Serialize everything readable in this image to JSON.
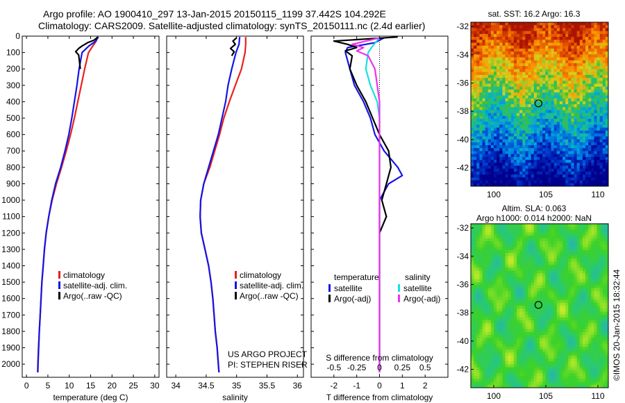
{
  "header": {
    "line1": "Argo profile: AO 1900410_297 13-Jan-2015 20150115_1199 37.442S 104.292E",
    "line2": "Climatology: CARS2009. Satellite-adjusted climatology: synTS_20150111.nc (2.4d earlier)"
  },
  "colors": {
    "climatology": "#e8201a",
    "satellite": "#1414e6",
    "argo": "#000000",
    "sal_satellite": "#17e0e0",
    "sal_argo": "#ee30ee"
  },
  "chart_data": [
    {
      "type": "line",
      "id": "temperature",
      "xlabel": "temperature (deg C)",
      "xlim": [
        -1,
        31
      ],
      "ylim": [
        2080,
        0
      ],
      "xticks": [
        0,
        5,
        10,
        15,
        20,
        25,
        30
      ],
      "yticks": [
        0,
        100,
        200,
        300,
        400,
        500,
        600,
        700,
        800,
        900,
        1000,
        1100,
        1200,
        1300,
        1400,
        1500,
        1600,
        1700,
        1800,
        1900,
        2000
      ],
      "legend": [
        "climatology",
        "satellite-adj. clim.",
        "Argo(..raw -QC)"
      ],
      "series": [
        {
          "name": "climatology",
          "color": "#e8201a",
          "points": [
            [
              16.6,
              5
            ],
            [
              16.3,
              30
            ],
            [
              15.5,
              60
            ],
            [
              14.5,
              100
            ],
            [
              13.6,
              200
            ],
            [
              12.8,
              300
            ],
            [
              12.0,
              400
            ],
            [
              11.2,
              500
            ],
            [
              10.3,
              600
            ],
            [
              9.3,
              700
            ],
            [
              8.2,
              800
            ],
            [
              7.0,
              900
            ],
            [
              6.0,
              1000
            ],
            [
              5.2,
              1100
            ],
            [
              4.6,
              1200
            ],
            [
              4.2,
              1300
            ],
            [
              3.9,
              1400
            ],
            [
              3.6,
              1500
            ],
            [
              3.4,
              1600
            ],
            [
              3.2,
              1700
            ],
            [
              3.0,
              1800
            ],
            [
              2.8,
              1900
            ],
            [
              2.65,
              2000
            ],
            [
              2.6,
              2050
            ]
          ]
        },
        {
          "name": "satellite-adj. clim.",
          "color": "#1414e6",
          "points": [
            [
              16.8,
              5
            ],
            [
              16.2,
              30
            ],
            [
              14.6,
              60
            ],
            [
              13.0,
              100
            ],
            [
              12.3,
              200
            ],
            [
              11.8,
              300
            ],
            [
              11.2,
              400
            ],
            [
              10.6,
              500
            ],
            [
              9.9,
              600
            ],
            [
              9.0,
              700
            ],
            [
              8.0,
              800
            ],
            [
              6.8,
              900
            ],
            [
              5.9,
              1000
            ],
            [
              5.2,
              1100
            ],
            [
              4.6,
              1200
            ],
            [
              4.2,
              1300
            ],
            [
              3.9,
              1400
            ],
            [
              3.6,
              1500
            ],
            [
              3.4,
              1600
            ],
            [
              3.2,
              1700
            ],
            [
              3.0,
              1800
            ],
            [
              2.85,
              1900
            ],
            [
              2.7,
              2000
            ],
            [
              2.65,
              2050
            ]
          ]
        },
        {
          "name": "Argo(..raw -QC)",
          "color": "#000000",
          "points": [
            [
              16.7,
              5
            ],
            [
              15.8,
              25
            ],
            [
              14.3,
              40
            ],
            [
              13.0,
              60
            ],
            [
              12.2,
              75
            ],
            [
              11.5,
              95
            ],
            [
              12.2,
              115
            ],
            [
              12.6,
              200
            ]
          ]
        }
      ]
    },
    {
      "type": "line",
      "id": "salinity",
      "xlabel": "salinity",
      "xlim": [
        33.85,
        36.1
      ],
      "ylim": [
        2080,
        0
      ],
      "xticks": [
        34,
        34.5,
        35,
        35.5,
        36
      ],
      "xticklabels": [
        "34",
        "34.5",
        "35",
        "35.5",
        "36"
      ],
      "legend": [
        "climatology",
        "satellite-adj. clim.",
        "Argo(..raw -QC)"
      ],
      "annotation": [
        "US ARGO PROJECT",
        "PI: STEPHEN RISER"
      ],
      "series": [
        {
          "name": "climatology",
          "color": "#e8201a",
          "points": [
            [
              35.15,
              5
            ],
            [
              35.15,
              50
            ],
            [
              35.14,
              100
            ],
            [
              35.08,
              200
            ],
            [
              34.98,
              300
            ],
            [
              34.88,
              400
            ],
            [
              34.79,
              500
            ],
            [
              34.72,
              600
            ],
            [
              34.64,
              700
            ],
            [
              34.56,
              800
            ],
            [
              34.46,
              900
            ],
            [
              34.41,
              1000
            ],
            [
              34.4,
              1100
            ],
            [
              34.42,
              1200
            ],
            [
              34.48,
              1300
            ],
            [
              34.54,
              1400
            ],
            [
              34.58,
              1500
            ],
            [
              34.61,
              1600
            ],
            [
              34.63,
              1700
            ],
            [
              34.65,
              1800
            ],
            [
              34.68,
              1900
            ],
            [
              34.7,
              2000
            ],
            [
              34.71,
              2050
            ]
          ]
        },
        {
          "name": "satellite-adj. clim.",
          "color": "#1414e6",
          "points": [
            [
              35.05,
              5
            ],
            [
              35.04,
              50
            ],
            [
              34.99,
              100
            ],
            [
              34.92,
              200
            ],
            [
              34.86,
              300
            ],
            [
              34.82,
              400
            ],
            [
              34.76,
              500
            ],
            [
              34.7,
              600
            ],
            [
              34.62,
              700
            ],
            [
              34.54,
              800
            ],
            [
              34.46,
              900
            ],
            [
              34.41,
              1000
            ],
            [
              34.4,
              1100
            ],
            [
              34.42,
              1200
            ],
            [
              34.48,
              1300
            ],
            [
              34.54,
              1400
            ],
            [
              34.58,
              1500
            ],
            [
              34.61,
              1600
            ],
            [
              34.63,
              1700
            ],
            [
              34.65,
              1800
            ],
            [
              34.68,
              1900
            ],
            [
              34.7,
              2000
            ],
            [
              34.71,
              2050
            ]
          ]
        },
        {
          "name": "Argo(..raw -QC)",
          "color": "#000000",
          "points": [
            [
              35.0,
              10
            ],
            [
              34.94,
              30
            ],
            [
              34.98,
              50
            ],
            [
              34.9,
              75
            ],
            [
              34.96,
              95
            ],
            [
              34.92,
              120
            ]
          ]
        }
      ]
    },
    {
      "type": "line",
      "id": "differences",
      "xlabel": "T difference from climatology",
      "xlabel2": "S difference from climatology",
      "xlim": [
        -3,
        3
      ],
      "ylim": [
        2080,
        0
      ],
      "xticks": [
        -2,
        -1,
        0,
        1,
        2
      ],
      "xticks2": [
        -0.5,
        -0.25,
        0,
        0.25,
        0.5
      ],
      "xticklabels2": [
        "-0.5",
        "-0.25",
        "0",
        "0.25",
        "0.5"
      ],
      "legend_headers": [
        "temperature",
        "salinity"
      ],
      "legend": [
        "satellite",
        "Argo(-adj)",
        "satellite",
        "Argo(-adj)"
      ],
      "series": [
        {
          "name": "satellite",
          "color": "#1414e6",
          "points": [
            [
              0.2,
              10
            ],
            [
              -0.2,
              40
            ],
            [
              -1.4,
              70
            ],
            [
              -1.5,
              100
            ],
            [
              -1.3,
              200
            ],
            [
              -1.1,
              300
            ],
            [
              -0.7,
              400
            ],
            [
              -0.4,
              500
            ],
            [
              -0.2,
              600
            ],
            [
              0.2,
              700
            ],
            [
              0.8,
              800
            ],
            [
              1.0,
              850
            ],
            [
              0.4,
              900
            ],
            [
              0.0,
              1000
            ],
            [
              0.0,
              1100
            ],
            [
              0.0,
              1300
            ],
            [
              0.0,
              2050
            ]
          ]
        },
        {
          "name": "Argo(-adj)",
          "color": "#000000",
          "points": [
            [
              0.8,
              5
            ],
            [
              -2.0,
              30
            ],
            [
              -1.4,
              50
            ],
            [
              -1.0,
              70
            ],
            [
              -1.5,
              90
            ],
            [
              -1.2,
              120
            ],
            [
              -1.3,
              200
            ],
            [
              -1.0,
              300
            ],
            [
              -0.6,
              400
            ],
            [
              -0.3,
              500
            ],
            [
              0.0,
              600
            ],
            [
              0.4,
              700
            ],
            [
              0.5,
              800
            ],
            [
              0.3,
              900
            ],
            [
              0.1,
              1000
            ],
            [
              0.3,
              1100
            ],
            [
              0.0,
              1200
            ]
          ]
        },
        {
          "name": "satellite ",
          "color": "#17e0e0",
          "points": [
            [
              0.0,
              10
            ],
            [
              -0.3,
              60
            ],
            [
              -0.5,
              100
            ],
            [
              -0.6,
              200
            ],
            [
              -0.4,
              300
            ],
            [
              -0.1,
              400
            ],
            [
              0.0,
              500
            ],
            [
              0.0,
              2050
            ]
          ]
        },
        {
          "name": "Argo(-adj) ",
          "color": "#ee30ee",
          "points": [
            [
              0.0,
              10
            ],
            [
              -1.2,
              50
            ],
            [
              -0.7,
              70
            ],
            [
              -1.0,
              90
            ],
            [
              -0.5,
              120
            ],
            [
              -0.2,
              200
            ],
            [
              0.0,
              400
            ],
            [
              0.0,
              2050
            ]
          ]
        }
      ]
    }
  ],
  "maps": [
    {
      "id": "sst-map",
      "title": "sat. SST: 16.2 Argo: 16.3",
      "xlim": [
        97.8,
        111
      ],
      "ylim": [
        -43.3,
        -31.7
      ],
      "xticks": [
        100,
        105,
        110
      ],
      "yticks": [
        -32,
        -34,
        -36,
        -38,
        -40,
        -42
      ],
      "marker": [
        104.292,
        -37.442
      ]
    },
    {
      "id": "sla-map",
      "title_lines": [
        "Altim. SLA: 0.063",
        "Argo h1000: 0.014 h2000: NaN"
      ],
      "xlim": [
        97.8,
        111
      ],
      "ylim": [
        -43.3,
        -31.7
      ],
      "xticks": [
        100,
        105,
        110
      ],
      "yticks": [
        -32,
        -34,
        -36,
        -38,
        -40,
        -42
      ],
      "marker": [
        104.292,
        -37.442
      ]
    }
  ],
  "credit": "©IMOS 20-Jan-2015 18:32:44"
}
